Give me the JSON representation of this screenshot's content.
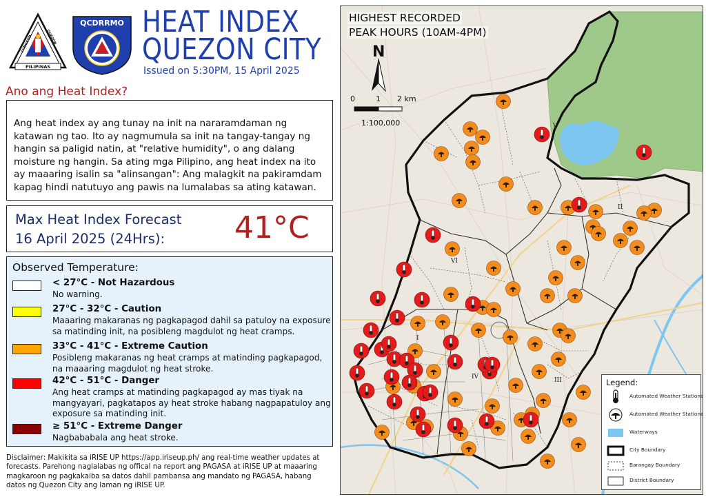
{
  "header": {
    "title_line1": "HEAT INDEX",
    "title_line2": "QUEZON CITY",
    "issued": "Issued on 5:30PM, 15 April 2025",
    "logo_qc_text_top": "LUNGSOD",
    "logo_qc_text_right": "QUEZON",
    "logo_qc_text_bottom": "PILIPINAS",
    "logo_qcdrrmo_text": "QCDRRMO"
  },
  "info": {
    "question": "Ano ang Heat Index?",
    "explanation": "Ang heat index ay ang tunay na init na nararamdaman ng katawan ng tao. Ito ay nagmumula sa init na tangay-tangay ng hangin sa paligid natin, at \"relative humidity\", o ang dalang moisture ng hangin. Sa ating mga Pilipino, ang heat index na ito ay maaaring isalin sa \"alinsangan\": Ang malagkit na pakiramdam kapag hindi natutuyo ang pawis na lumalabas sa ating katawan."
  },
  "forecast": {
    "label_line1": "Max Heat Index Forecast",
    "label_line2": "16 April 2025 (24Hrs):",
    "value": "41°C"
  },
  "observed": {
    "title": "Observed Temperature:",
    "categories": [
      {
        "title": "< 27°C - Not Hazardous",
        "desc": "No warning.",
        "color": "#ffffff"
      },
      {
        "title": "27°C - 32°C - Caution",
        "desc": "Maaaring makaranas ng pagkapagod dahil sa patuloy na exposure sa matinding init, na posibleng magdulot ng heat cramps.",
        "color": "#ffff00"
      },
      {
        "title": "33°C - 41°C - Extreme Caution",
        "desc": "Posibleng makaranas ng heat cramps at matinding pagkapagod, na maaaring magdulot ng heat stroke.",
        "color": "#ffa500"
      },
      {
        "title": "42°C - 51°C - Danger",
        "desc": "Ang heat cramps at matinding pagkapagod ay mas tiyak na mangyayari, pagkatapos ay heat stroke habang nagpapatuloy ang exposure sa matinding init.",
        "color": "#ff0000"
      },
      {
        "title": "≥ 51°C - Extreme Danger",
        "desc": "Nagbababala ang heat stroke.",
        "color": "#8b0000"
      }
    ]
  },
  "disclaimer": "Disclaimer: Makikita sa iRISE UP https://app.iriseup.ph/ ang real-time weather updates at forecasts. Parehong naglalabas ng offical na report ang PAGASA at iRISE UP at maaaring magkaroon ng pagkakaiba sa datos dahil pambansa ang mandato ng PAGASA, habang datos ng Quezon City ang laman ng iRISE UP.",
  "map": {
    "title_line1": "HIGHEST RECORDED",
    "title_line2": "PEAK HOURS (10AM-4PM)",
    "north": "N",
    "scale_ticks": [
      "0",
      "1",
      "2 km"
    ],
    "scale_ratio": "1:100,000",
    "district_labels": [
      "I",
      "II",
      "III",
      "IV",
      "V",
      "VI"
    ],
    "stations": {
      "count_extreme_caution": 60,
      "count_danger": 33
    },
    "legend": {
      "title": "Legend:",
      "items": [
        {
          "label": "Automated Weather Stations",
          "icon": "thermometer-icon"
        },
        {
          "label": "Automated Weather Stations",
          "icon": "weather-station-icon"
        },
        {
          "label": "Waterways",
          "icon": "waterway-swatch"
        },
        {
          "label": "City Boundary",
          "icon": "city-boundary-line"
        },
        {
          "label": "Barangay Boundary",
          "icon": "barangay-boundary-line"
        },
        {
          "label": "District Boundary",
          "icon": "district-boundary-line"
        }
      ]
    },
    "colors": {
      "extreme_caution": "#f28c1e",
      "danger": "#e41b1b",
      "waterway": "#7cc6f0",
      "forest": "#9ec98a"
    }
  }
}
